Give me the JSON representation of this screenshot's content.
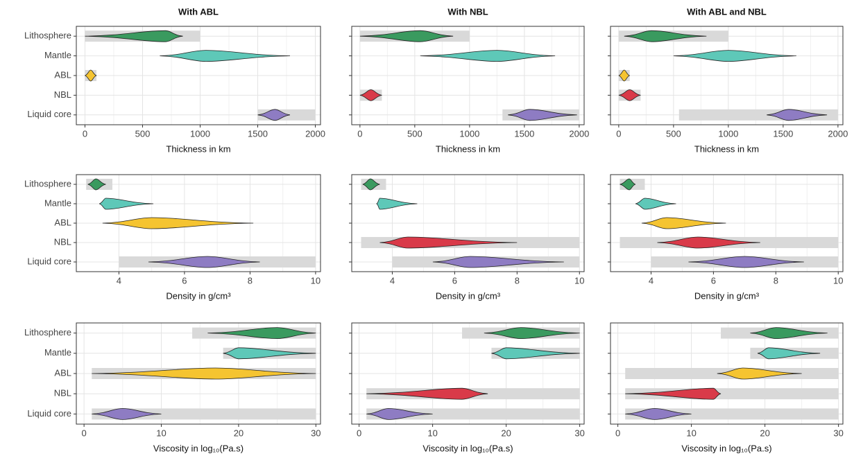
{
  "chart_data": [
    {
      "type": "violin",
      "title": "With ABL",
      "x_label": "Thickness in km",
      "categories": [
        "Lithosphere",
        "Mantle",
        "ABL",
        "NBL",
        "Liquid core"
      ],
      "colors": [
        "#3a9a5f",
        "#5ec8b8",
        "#f5c431",
        "#d93a49",
        "#8e7cc3"
      ],
      "prior_color": "#d9d9d9",
      "xlim": [
        -75,
        2045
      ],
      "xticks": [
        0,
        500,
        1000,
        1500,
        2000
      ],
      "grid": true,
      "priors": [
        [
          0,
          1000
        ],
        null,
        [
          0,
          100
        ],
        null,
        [
          1500,
          2000
        ]
      ],
      "violins": [
        [
          0,
          700,
          850
        ],
        [
          650,
          1050,
          1780
        ],
        [
          0,
          50,
          100
        ],
        null,
        [
          1500,
          1650,
          1780
        ]
      ]
    },
    {
      "type": "violin",
      "title": "With NBL",
      "x_label": "Thickness in km",
      "colors": [
        "#3a9a5f",
        "#5ec8b8",
        "#f5c431",
        "#d93a49",
        "#8e7cc3"
      ],
      "prior_color": "#d9d9d9",
      "xlim": [
        -75,
        2045
      ],
      "xticks": [
        0,
        500,
        1000,
        1500,
        2000
      ],
      "grid": true,
      "priors": [
        [
          0,
          1000
        ],
        null,
        null,
        [
          0,
          200
        ],
        [
          1300,
          2000
        ]
      ],
      "violins": [
        [
          0,
          550,
          850
        ],
        [
          550,
          1250,
          1780
        ],
        null,
        [
          0,
          100,
          200
        ],
        [
          1350,
          1550,
          1980
        ]
      ]
    },
    {
      "type": "violin",
      "title": "With ABL and NBL",
      "x_label": "Thickness in km",
      "colors": [
        "#3a9a5f",
        "#5ec8b8",
        "#f5c431",
        "#d93a49",
        "#8e7cc3"
      ],
      "prior_color": "#d9d9d9",
      "xlim": [
        -75,
        2045
      ],
      "xticks": [
        0,
        500,
        1000,
        1500,
        2000
      ],
      "grid": true,
      "priors": [
        [
          0,
          1000
        ],
        null,
        [
          0,
          100
        ],
        [
          0,
          200
        ],
        [
          550,
          2000
        ]
      ],
      "violins": [
        [
          50,
          300,
          800
        ],
        [
          500,
          1000,
          1620
        ],
        [
          0,
          50,
          100
        ],
        [
          0,
          100,
          200
        ],
        [
          1350,
          1550,
          1900
        ]
      ]
    },
    {
      "type": "violin",
      "x_label": "Density in g/cm³",
      "categories": [
        "Lithosphere",
        "Mantle",
        "ABL",
        "NBL",
        "Liquid core"
      ],
      "colors": [
        "#3a9a5f",
        "#5ec8b8",
        "#f5c431",
        "#d93a49",
        "#8e7cc3"
      ],
      "prior_color": "#d9d9d9",
      "xlim": [
        2.7,
        10.15
      ],
      "xticks": [
        4,
        6,
        8,
        10
      ],
      "grid": true,
      "priors": [
        [
          3,
          3.8
        ],
        null,
        null,
        null,
        [
          4,
          10
        ]
      ],
      "violins": [
        [
          3.05,
          3.3,
          3.6
        ],
        [
          3.4,
          3.6,
          5.05
        ],
        [
          3.5,
          5,
          8.1
        ],
        null,
        [
          4.9,
          6.7,
          8.3
        ]
      ]
    },
    {
      "type": "violin",
      "x_label": "Density in g/cm³",
      "colors": [
        "#3a9a5f",
        "#5ec8b8",
        "#f5c431",
        "#d93a49",
        "#8e7cc3"
      ],
      "prior_color": "#d9d9d9",
      "xlim": [
        2.7,
        10.15
      ],
      "xticks": [
        4,
        6,
        8,
        10
      ],
      "grid": true,
      "priors": [
        [
          3,
          3.8
        ],
        null,
        null,
        [
          3,
          10
        ],
        [
          4,
          10
        ]
      ],
      "violins": [
        [
          3.05,
          3.3,
          3.6
        ],
        [
          3.5,
          3.6,
          4.8
        ],
        null,
        [
          3.6,
          4.5,
          8
        ],
        [
          5.3,
          6.5,
          9.5
        ]
      ]
    },
    {
      "type": "violin",
      "x_label": "Density in g/cm³",
      "colors": [
        "#3a9a5f",
        "#5ec8b8",
        "#f5c431",
        "#d93a49",
        "#8e7cc3"
      ],
      "prior_color": "#d9d9d9",
      "xlim": [
        2.7,
        10.15
      ],
      "xticks": [
        4,
        6,
        8,
        10
      ],
      "grid": true,
      "priors": [
        [
          3,
          3.8
        ],
        null,
        null,
        [
          3,
          10
        ],
        [
          4,
          10
        ]
      ],
      "violins": [
        [
          3,
          3.3,
          3.5
        ],
        [
          3.5,
          3.8,
          4.8
        ],
        [
          3.7,
          4.5,
          6.4
        ],
        [
          4.2,
          5.5,
          7.5
        ],
        [
          5.2,
          7,
          8.9
        ]
      ]
    },
    {
      "type": "violin",
      "x_label": "Viscosity in log₁₀(Pa.s)",
      "categories": [
        "Lithosphere",
        "Mantle",
        "ABL",
        "NBL",
        "Liquid core"
      ],
      "colors": [
        "#3a9a5f",
        "#5ec8b8",
        "#f5c431",
        "#d93a49",
        "#8e7cc3"
      ],
      "prior_color": "#d9d9d9",
      "xlim": [
        -1,
        30.6
      ],
      "xticks": [
        0,
        10,
        20,
        30
      ],
      "grid": true,
      "priors": [
        [
          14,
          30
        ],
        [
          18,
          30
        ],
        [
          1,
          30
        ],
        null,
        [
          1,
          30
        ]
      ],
      "violins": [
        [
          16,
          25,
          30
        ],
        [
          18,
          20,
          30
        ],
        [
          1,
          17,
          30
        ],
        null,
        [
          1,
          5,
          10
        ]
      ]
    },
    {
      "type": "violin",
      "x_label": "Viscosity in log₁₀(Pa.s)",
      "colors": [
        "#3a9a5f",
        "#5ec8b8",
        "#f5c431",
        "#d93a49",
        "#8e7cc3"
      ],
      "prior_color": "#d9d9d9",
      "xlim": [
        -1,
        30.6
      ],
      "xticks": [
        0,
        10,
        20,
        30
      ],
      "grid": true,
      "priors": [
        [
          14,
          30
        ],
        [
          18,
          30
        ],
        null,
        [
          1,
          30
        ],
        [
          1,
          30
        ]
      ],
      "violins": [
        [
          17,
          22,
          30
        ],
        [
          18,
          20,
          30
        ],
        null,
        [
          1,
          14,
          17.5
        ],
        [
          1,
          4,
          10
        ]
      ]
    },
    {
      "type": "violin",
      "x_label": "Viscosity in log₁₀(Pa.s)",
      "colors": [
        "#3a9a5f",
        "#5ec8b8",
        "#f5c431",
        "#d93a49",
        "#8e7cc3"
      ],
      "prior_color": "#d9d9d9",
      "xlim": [
        -1,
        30.6
      ],
      "xticks": [
        0,
        10,
        20,
        30
      ],
      "grid": true,
      "priors": [
        [
          14,
          30
        ],
        [
          18,
          30
        ],
        [
          1,
          30
        ],
        [
          1,
          30
        ],
        [
          1,
          30
        ]
      ],
      "violins": [
        [
          18,
          21.5,
          28.5
        ],
        [
          19,
          20.5,
          27.5
        ],
        [
          13.5,
          17,
          25
        ],
        [
          1,
          13,
          14
        ],
        [
          1,
          5,
          10
        ]
      ]
    }
  ]
}
